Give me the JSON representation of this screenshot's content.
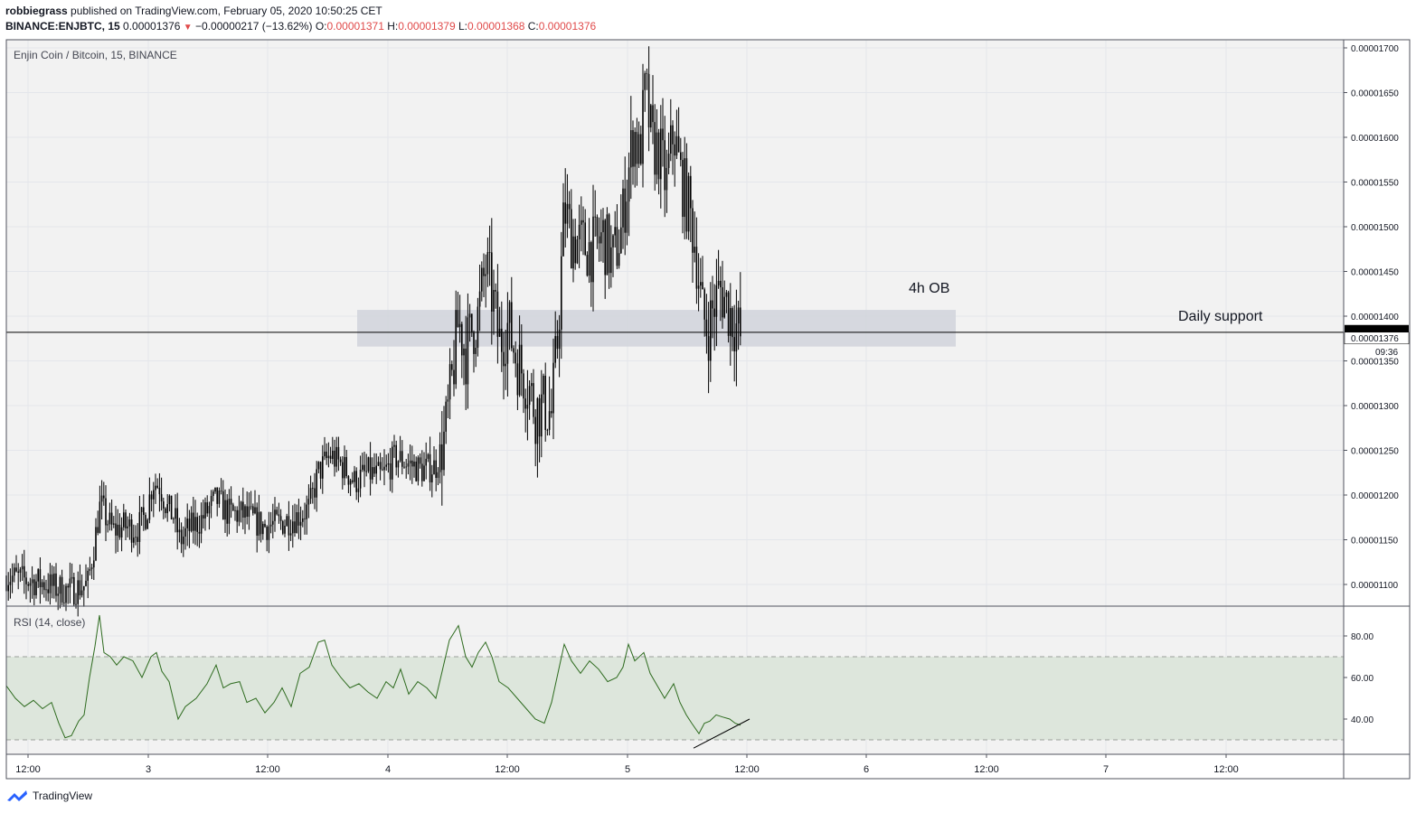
{
  "header": {
    "author": "robbiegrass",
    "published_text": " published on TradingView.com, February 05, 2020 10:50:25 CET",
    "symbol_line": "BINANCE:ENJBTC, 15",
    "price": "0.00001376",
    "change": "−0.00000217 (−13.62%)",
    "open_label": "O:",
    "open": "0.00001371",
    "high_label": "H:",
    "high": "0.00001379",
    "low_label": "L:",
    "low": "0.00001368",
    "close_label": "C:",
    "close": "0.00001376"
  },
  "colors": {
    "candle": "#000000",
    "ob_zone": "#d1d4dc",
    "rsi_line": "#2e6b1f",
    "rsi_band": "#dde6dc",
    "grid": "#e4e6eb",
    "bg": "#f2f2f2"
  },
  "chart_data": [
    {
      "type": "candlestick",
      "title": "Enjin Coin / Bitcoin, 15, BINANCE",
      "x_tick_labels": [
        "12:00",
        "3",
        "12:00",
        "4",
        "12:00",
        "5",
        "12:00",
        "6",
        "12:00",
        "7",
        "12:00"
      ],
      "y_tick_labels": [
        "0.00001700",
        "0.00001650",
        "0.00001600",
        "0.00001550",
        "0.00001500",
        "0.00001450",
        "0.00001400",
        "0.00001350",
        "0.00001300",
        "0.00001250",
        "0.00001200",
        "0.00001150",
        "0.00001100"
      ],
      "ylim": [
        1.07e-05,
        1.705e-05
      ],
      "close_path": [
        [
          0,
          1.11e-05
        ],
        [
          20,
          1.105e-05
        ],
        [
          40,
          1.102e-05
        ],
        [
          55,
          1.096e-05
        ],
        [
          70,
          1.093e-05
        ],
        [
          90,
          1.1e-05
        ],
        [
          98,
          1.15e-05
        ],
        [
          104,
          1.19e-05
        ],
        [
          110,
          1.175e-05
        ],
        [
          118,
          1.16e-05
        ],
        [
          130,
          1.165e-05
        ],
        [
          145,
          1.162e-05
        ],
        [
          155,
          1.18e-05
        ],
        [
          162,
          1.215e-05
        ],
        [
          170,
          1.21e-05
        ],
        [
          178,
          1.185e-05
        ],
        [
          186,
          1.175e-05
        ],
        [
          192,
          1.148e-05
        ],
        [
          200,
          1.16e-05
        ],
        [
          215,
          1.172e-05
        ],
        [
          232,
          1.195e-05
        ],
        [
          245,
          1.18e-05
        ],
        [
          262,
          1.178e-05
        ],
        [
          285,
          1.165e-05
        ],
        [
          300,
          1.168e-05
        ],
        [
          320,
          1.175e-05
        ],
        [
          335,
          1.185e-05
        ],
        [
          345,
          1.225e-05
        ],
        [
          358,
          1.245e-05
        ],
        [
          372,
          1.232e-05
        ],
        [
          385,
          1.215e-05
        ],
        [
          400,
          1.225e-05
        ],
        [
          415,
          1.22e-05
        ],
        [
          430,
          1.242e-05
        ],
        [
          445,
          1.235e-05
        ],
        [
          460,
          1.228e-05
        ],
        [
          475,
          1.232e-05
        ],
        [
          485,
          1.265e-05
        ],
        [
          492,
          1.32e-05
        ],
        [
          500,
          1.395e-05
        ],
        [
          508,
          1.36e-05
        ],
        [
          515,
          1.385e-05
        ],
        [
          522,
          1.4e-05
        ],
        [
          530,
          1.455e-05
        ],
        [
          538,
          1.42e-05
        ],
        [
          545,
          1.37e-05
        ],
        [
          555,
          1.39e-05
        ],
        [
          565,
          1.35e-05
        ],
        [
          575,
          1.33e-05
        ],
        [
          585,
          1.295e-05
        ],
        [
          595,
          1.3e-05
        ],
        [
          603,
          1.29e-05
        ],
        [
          610,
          1.38e-05
        ],
        [
          617,
          1.52e-05
        ],
        [
          625,
          1.49e-05
        ],
        [
          635,
          1.48e-05
        ],
        [
          650,
          1.475e-05
        ],
        [
          660,
          1.49e-05
        ],
        [
          670,
          1.46e-05
        ],
        [
          680,
          1.495e-05
        ],
        [
          688,
          1.56e-05
        ],
        [
          694,
          1.61e-05
        ],
        [
          700,
          1.575e-05
        ],
        [
          707,
          1.655e-05
        ],
        [
          714,
          1.59e-05
        ],
        [
          722,
          1.585e-05
        ],
        [
          730,
          1.545e-05
        ],
        [
          738,
          1.61e-05
        ],
        [
          745,
          1.56e-05
        ],
        [
          755,
          1.52e-05
        ],
        [
          762,
          1.48e-05
        ],
        [
          770,
          1.4e-05
        ],
        [
          776,
          1.385e-05
        ],
        [
          782,
          1.41e-05
        ],
        [
          790,
          1.43e-05
        ],
        [
          798,
          1.41e-05
        ],
        [
          805,
          1.395e-05
        ],
        [
          812,
          1.376e-05
        ]
      ],
      "annotations": [
        {
          "text": "4h OB",
          "zone_low": 1.366e-05,
          "zone_high": 1.407e-05
        },
        {
          "text": "Daily support",
          "price": 1.382e-05
        }
      ],
      "last_price_label": "0.00001376",
      "countdown_label": "09:36"
    },
    {
      "type": "line",
      "title": "RSI (14, close)",
      "y_tick_labels": [
        "80.00",
        "60.00",
        "40.00"
      ],
      "ylim": [
        23,
        93
      ],
      "band": [
        30,
        70
      ],
      "series": [
        {
          "values": [
            [
              0,
              56
            ],
            [
              10,
              50
            ],
            [
              20,
              46
            ],
            [
              30,
              49
            ],
            [
              40,
              45
            ],
            [
              50,
              48
            ],
            [
              58,
              38
            ],
            [
              65,
              31
            ],
            [
              72,
              32
            ],
            [
              80,
              39
            ],
            [
              86,
              42
            ],
            [
              92,
              60
            ],
            [
              98,
              75
            ],
            [
              103,
              90
            ],
            [
              108,
              72
            ],
            [
              115,
              70
            ],
            [
              122,
              66
            ],
            [
              130,
              70
            ],
            [
              140,
              68
            ],
            [
              150,
              60
            ],
            [
              160,
              70
            ],
            [
              166,
              72
            ],
            [
              172,
              63
            ],
            [
              180,
              58
            ],
            [
              186,
              47
            ],
            [
              190,
              40
            ],
            [
              198,
              46
            ],
            [
              210,
              50
            ],
            [
              222,
              57
            ],
            [
              232,
              66
            ],
            [
              240,
              55
            ],
            [
              248,
              57
            ],
            [
              258,
              58
            ],
            [
              266,
              48
            ],
            [
              276,
              50
            ],
            [
              286,
              43
            ],
            [
              296,
              48
            ],
            [
              305,
              55
            ],
            [
              315,
              46
            ],
            [
              325,
              62
            ],
            [
              335,
              65
            ],
            [
              345,
              77
            ],
            [
              352,
              78
            ],
            [
              360,
              66
            ],
            [
              370,
              60
            ],
            [
              380,
              55
            ],
            [
              390,
              57
            ],
            [
              400,
              53
            ],
            [
              410,
              50
            ],
            [
              420,
              58
            ],
            [
              428,
              55
            ],
            [
              436,
              64
            ],
            [
              445,
              52
            ],
            [
              455,
              58
            ],
            [
              465,
              55
            ],
            [
              475,
              50
            ],
            [
              482,
              63
            ],
            [
              490,
              78
            ],
            [
              500,
              85
            ],
            [
              508,
              70
            ],
            [
              515,
              65
            ],
            [
              522,
              72
            ],
            [
              530,
              77
            ],
            [
              537,
              70
            ],
            [
              545,
              58
            ],
            [
              555,
              55
            ],
            [
              565,
              50
            ],
            [
              575,
              45
            ],
            [
              585,
              40
            ],
            [
              595,
              38
            ],
            [
              603,
              48
            ],
            [
              610,
              62
            ],
            [
              617,
              76
            ],
            [
              625,
              68
            ],
            [
              635,
              62
            ],
            [
              645,
              68
            ],
            [
              655,
              64
            ],
            [
              665,
              58
            ],
            [
              675,
              60
            ],
            [
              682,
              65
            ],
            [
              688,
              76
            ],
            [
              695,
              68
            ],
            [
              705,
              72
            ],
            [
              712,
              62
            ],
            [
              720,
              56
            ],
            [
              728,
              50
            ],
            [
              738,
              57
            ],
            [
              745,
              48
            ],
            [
              752,
              42
            ],
            [
              758,
              38
            ],
            [
              766,
              33
            ],
            [
              772,
              38
            ],
            [
              778,
              39
            ],
            [
              785,
              42
            ],
            [
              792,
              41
            ],
            [
              800,
              40
            ],
            [
              806,
              38
            ],
            [
              812,
              37
            ]
          ]
        }
      ],
      "trendline": [
        [
          760,
          26
        ],
        [
          822,
          40
        ]
      ]
    }
  ],
  "footer": {
    "brand": "TradingView"
  }
}
